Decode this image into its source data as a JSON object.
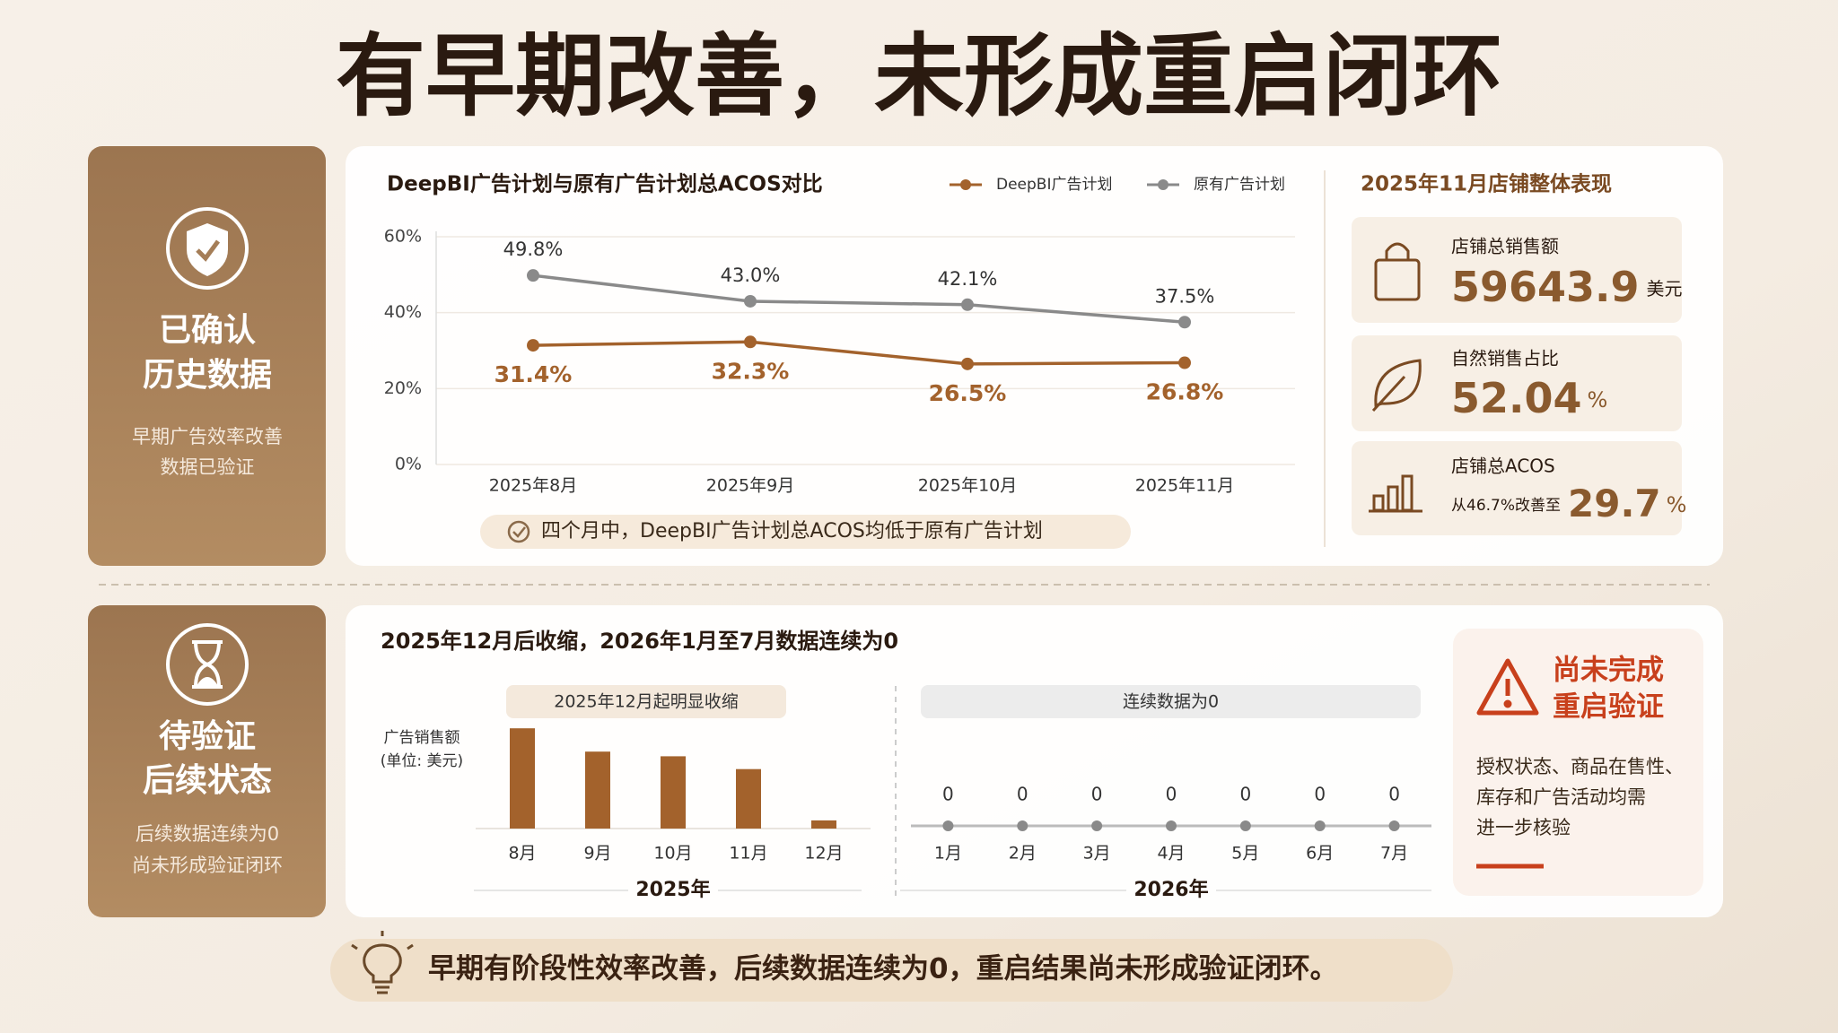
{
  "title": "有早期改善，未形成重启闭环",
  "confirmed_card": {
    "title_lines": [
      "已确认",
      "历史数据"
    ],
    "desc_lines": [
      "早期广告效率改善",
      "数据已验证"
    ]
  },
  "pending_card": {
    "title_lines": [
      "待验证",
      "后续状态"
    ],
    "desc_lines": [
      "后续数据连续为0",
      "尚未形成验证闭环"
    ]
  },
  "chart_data": [
    {
      "type": "line",
      "title": "DeepBI广告计划与原有广告计划总ACOS对比",
      "categories": [
        "2025年8月",
        "2025年9月",
        "2025年10月",
        "2025年11月"
      ],
      "series": [
        {
          "name": "DeepBI广告计划",
          "color": "#a3622c",
          "values": [
            31.4,
            32.3,
            26.5,
            26.8
          ],
          "value_labels": [
            "31.4%",
            "32.3%",
            "26.5%",
            "26.8%"
          ]
        },
        {
          "name": "原有广告计划",
          "color": "#8a8a8a",
          "values": [
            49.8,
            43.0,
            42.1,
            37.5
          ],
          "value_labels": [
            "49.8%",
            "43.0%",
            "42.1%",
            "37.5%"
          ]
        }
      ],
      "ylim": [
        0,
        60
      ],
      "yticks": [
        {
          "value": 0,
          "label": "0%"
        },
        {
          "value": 20,
          "label": "20%"
        },
        {
          "value": 40,
          "label": "40%"
        },
        {
          "value": 60,
          "label": "60%"
        }
      ],
      "grid": true
    },
    {
      "type": "bar",
      "title": "2025年12月后收缩，2026年1月至7月数据连续为0",
      "y_label_lines": [
        "广告销售额",
        "(单位: 美元)"
      ],
      "color": "#a3622c",
      "ylim": [
        0,
        100
      ],
      "groups": [
        {
          "name": "2025年",
          "annotation": "2025年12月起明显收缩",
          "mark": "bar",
          "categories": [
            "8月",
            "9月",
            "10月",
            "11月",
            "12月"
          ],
          "values": [
            86,
            66,
            62,
            51,
            7
          ]
        },
        {
          "name": "2026年",
          "annotation": "连续数据为0",
          "mark": "point",
          "categories": [
            "1月",
            "2月",
            "3月",
            "4月",
            "5月",
            "6月",
            "7月"
          ],
          "values": [
            0,
            0,
            0,
            0,
            0,
            0,
            0
          ]
        }
      ]
    }
  ],
  "acos_note": "四个月中，DeepBI广告计划总ACOS均低于原有广告计划",
  "store_panel": {
    "title": "2025年11月店铺整体表现",
    "kpis": [
      {
        "label": "店铺总销售额",
        "value": 59643.9,
        "unit": "美元"
      },
      {
        "label": "自然销售占比",
        "value": 52.04,
        "unit": "%"
      },
      {
        "label": "店铺总ACOS",
        "prefix": "从46.7%改善至",
        "value": 29.7,
        "unit": "%"
      }
    ]
  },
  "warning": {
    "title_lines": [
      "尚未完成",
      "重启验证"
    ],
    "desc_lines": [
      "授权状态、商品在售性、",
      "库存和广告活动均需",
      "进一步核验"
    ]
  },
  "conclusion": "早期有阶段性效率改善，后续数据连续为0，重启结果尚未形成验证闭环。"
}
